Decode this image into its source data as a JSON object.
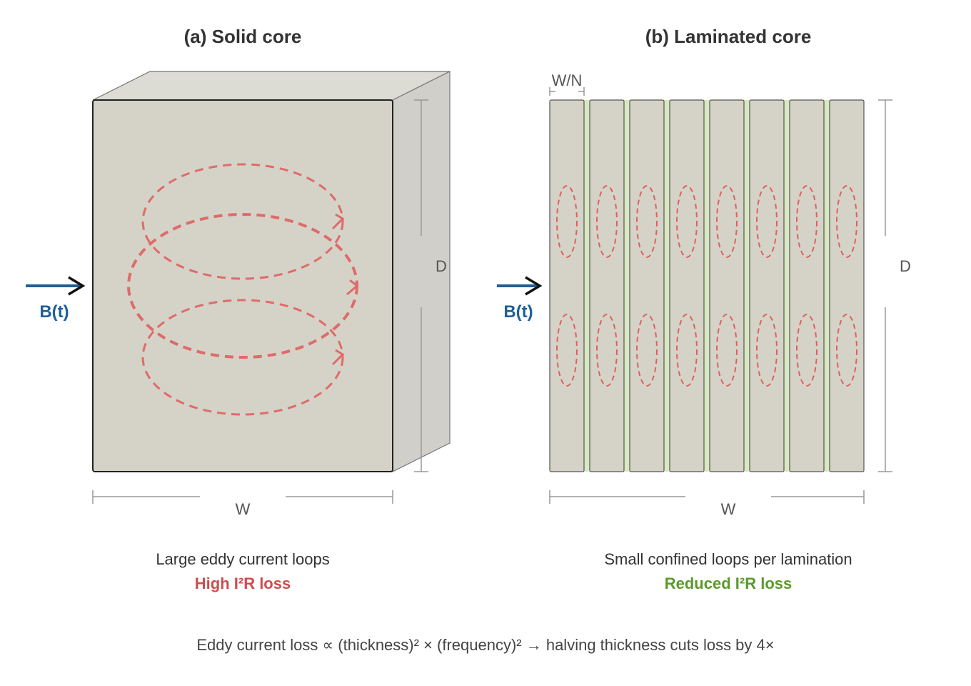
{
  "panel_a": {
    "title": "(a) Solid core",
    "field_label": "B(t)",
    "dim_depth": "D",
    "dim_width": "W",
    "caption": "Large eddy current loops",
    "result": "High I²R loss"
  },
  "panel_b": {
    "title": "(b) Laminated core",
    "lamination_label": "W/N",
    "field_label": "B(t)",
    "dim_depth": "D",
    "dim_width": "W",
    "caption": "Small confined loops per lamination",
    "result": "Reduced I²R loss",
    "lamination_count": 8
  },
  "footer": "Eddy current loss ∝ (thickness)² × (frequency)² → halving thickness cuts loss by 4×",
  "colors": {
    "core": "#d5d3c7",
    "eddy": "#e06060",
    "field": "#1f5f99",
    "high_loss": "#cc4d4d",
    "reduced_loss": "#5a9a2a",
    "insulation": "#d8e8c0"
  }
}
